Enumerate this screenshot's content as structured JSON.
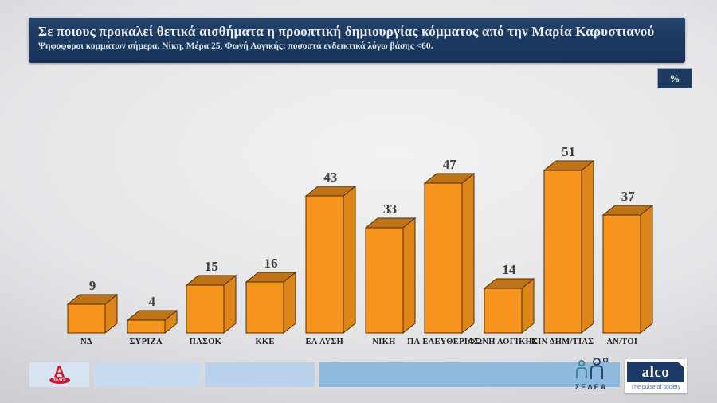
{
  "header": {
    "title": "Σε ποιους προκαλεί θετικά αισθήματα η προοπτική δημιουργίας κόμματος από την Μαρία Καρυστιανού",
    "subtitle": "Ψηφοφόροι κομμάτων σήμερα. Νίκη, Μέρα 25, Φωνή Λογικής: ποσοστά ενδεικτικά λόγω βάσης <60."
  },
  "unit_badge": "%",
  "chart_data": {
    "type": "bar",
    "style": "3d-column",
    "categories": [
      "ΝΔ",
      "ΣΥΡΙΖΑ",
      "ΠΑΣΟΚ",
      "ΚΚΕ",
      "ΕΛ ΛΥΣΗ",
      "ΝΙΚΗ",
      "ΠΛ ΕΛΕΥΘΕΡΙΑΣ",
      "ΦΩΝΗ ΛΟΓΙΚΗΣ",
      "ΚΙΝ ΔΗΜ/ΤΙΑΣ",
      "ΑΝ/ΤΟΙ"
    ],
    "values": [
      9,
      4,
      15,
      16,
      43,
      33,
      47,
      14,
      51,
      37
    ],
    "unit": "%",
    "title": "Σε ποιους προκαλεί θετικά αισθήματα η προοπτική δημιουργίας κόμματος από την Μαρία Καρυστιανού",
    "xlabel": "",
    "ylabel": "",
    "ylim": [
      0,
      60
    ],
    "grid": false,
    "axes_visible": false,
    "legend": "none",
    "data_labels": "above-bars",
    "bar_front_color": "#F7941D",
    "bar_top_color": "#BE7319",
    "bar_side_color": "#DD8518",
    "bar_outline_color": "#4a3208",
    "value_label_color": "#3d3d3d"
  },
  "colors": {
    "header_navy": "#1d3a60",
    "background_gray": "#e6e6e9",
    "accent_orange": "#F7941D"
  },
  "footer": {
    "alpha_news": {
      "letter": "A",
      "badge": "NEWS"
    },
    "sedea_label": "ΣΕΔΕΑ",
    "alco": {
      "name": "alco",
      "tagline": "The pulse of society"
    }
  }
}
